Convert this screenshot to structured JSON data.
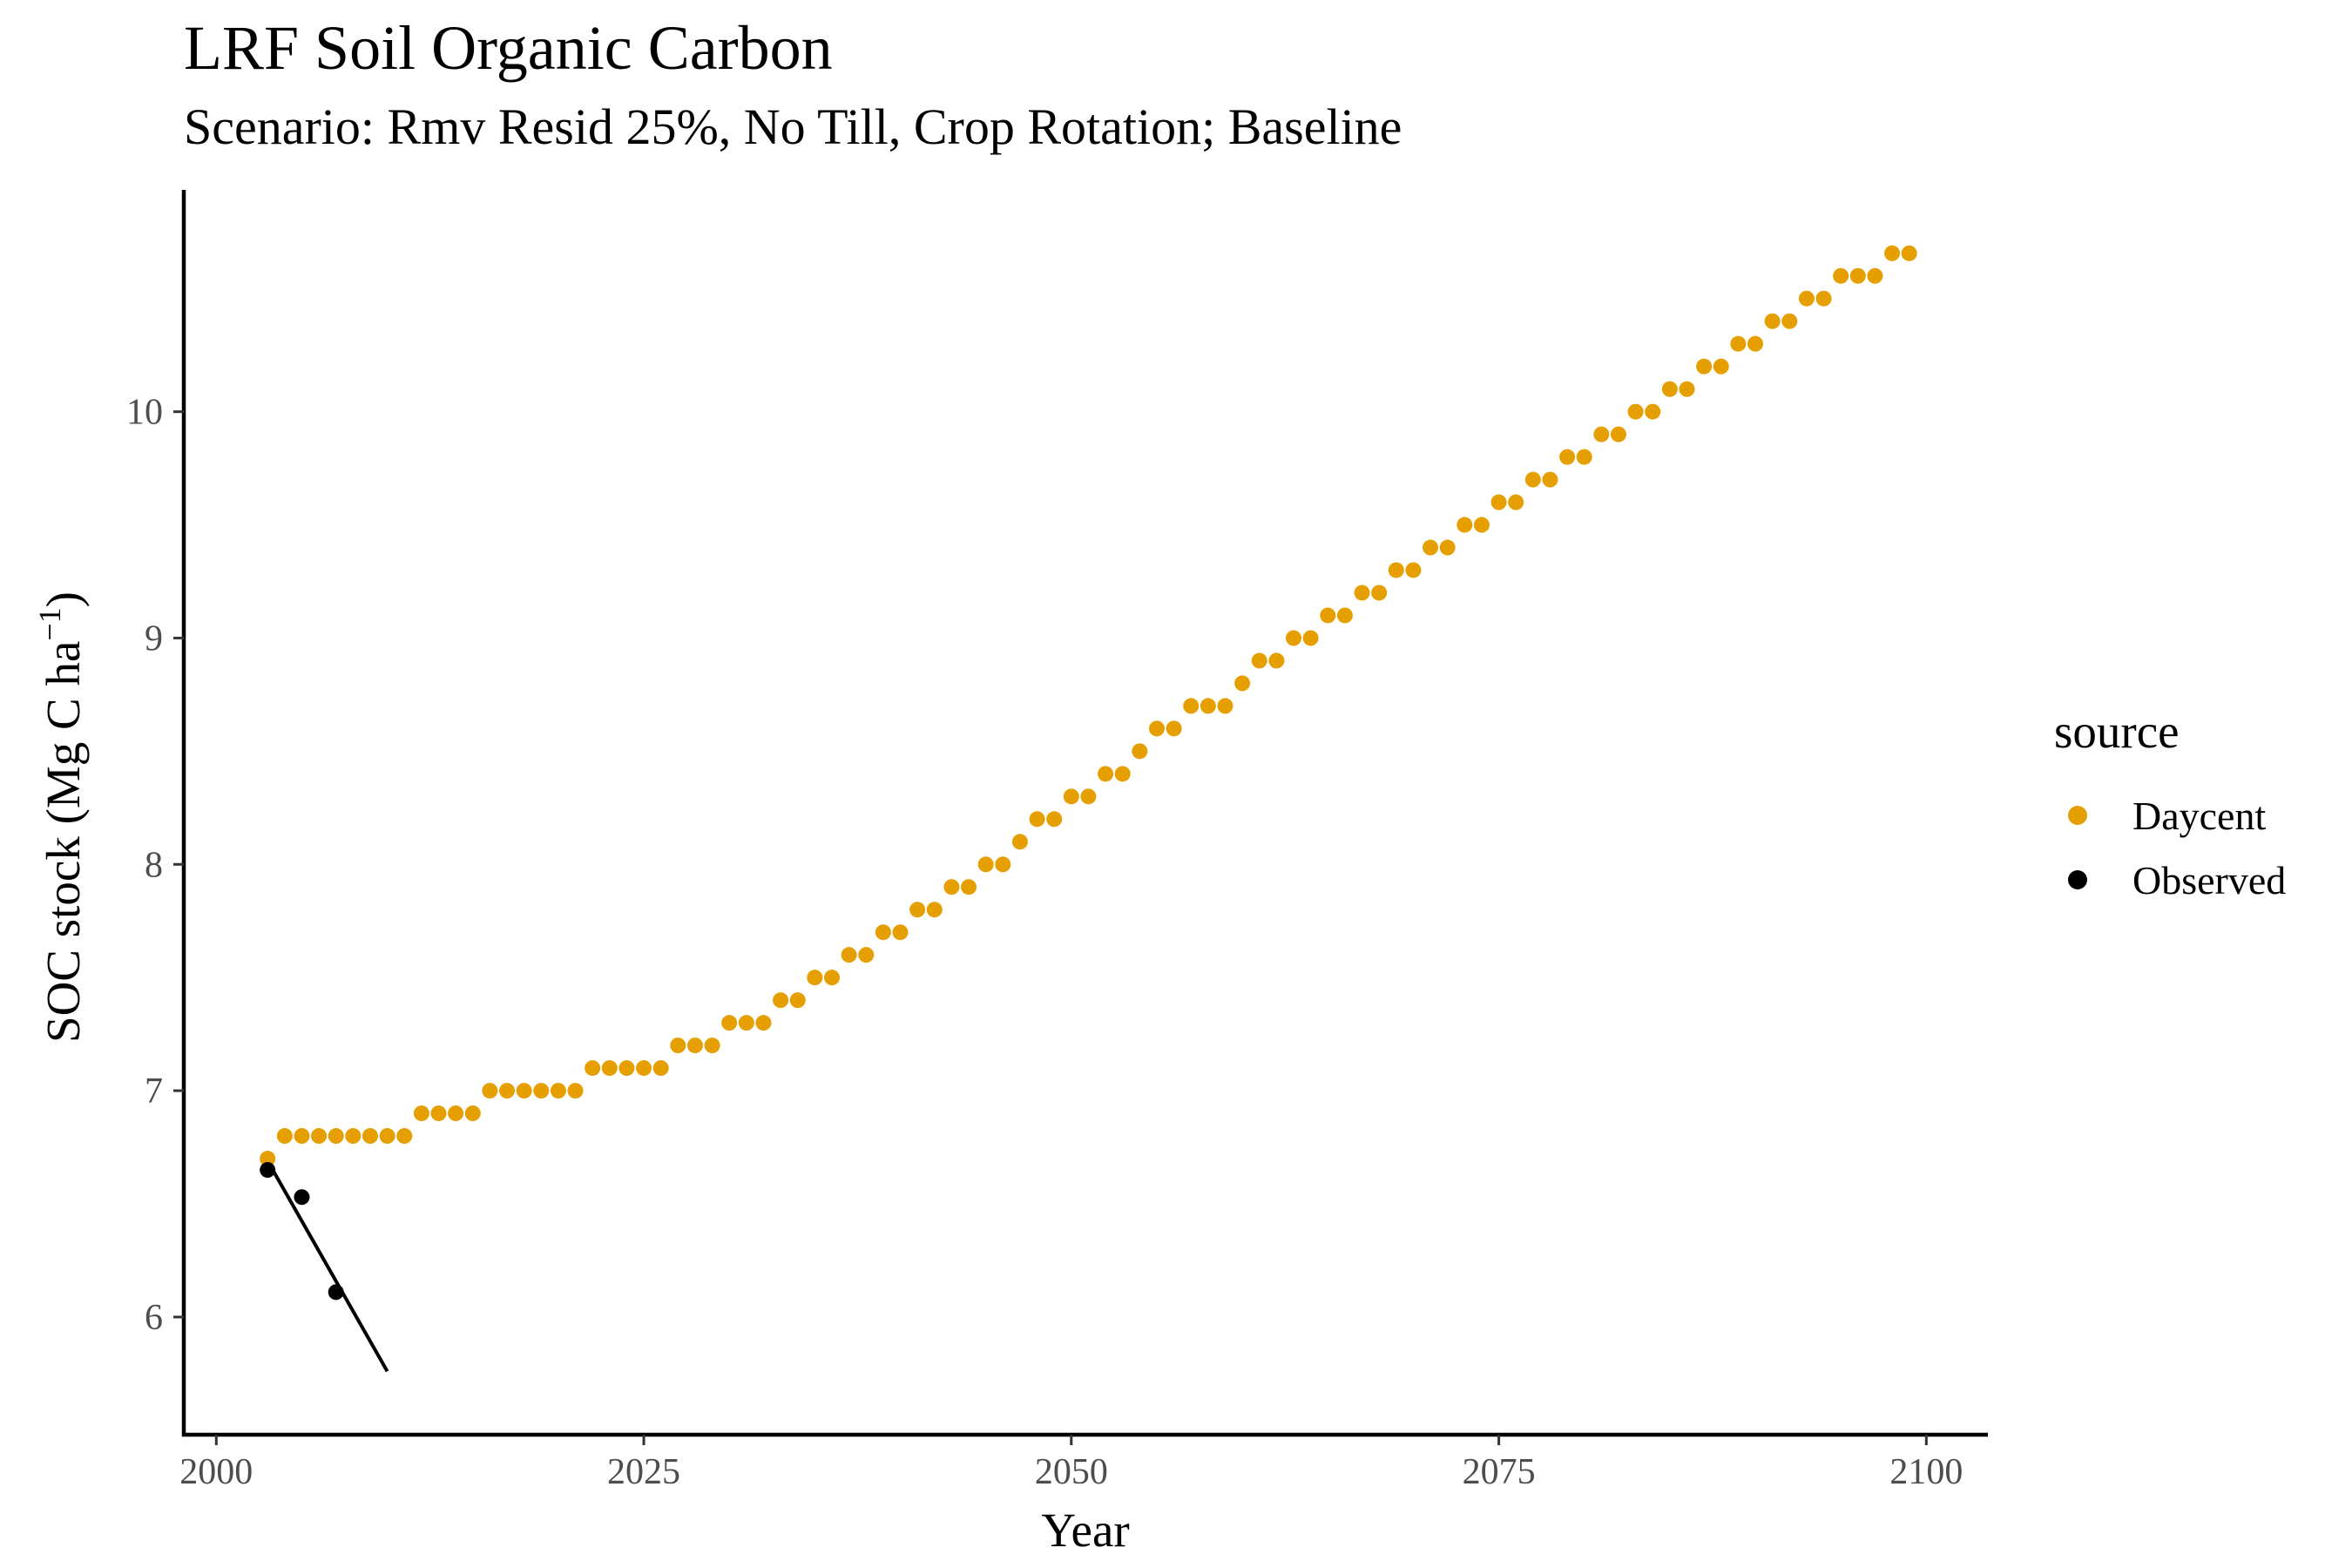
{
  "chart_data": {
    "type": "scatter",
    "title": "LRF Soil Organic Carbon",
    "subtitle": "Scenario: Rmv Resid 25%, No Till, Crop Rotation; Baseline",
    "xlabel": "Year",
    "ylabel_main": "SOC stock (Mg C ha",
    "ylabel_sup": "−1",
    "ylabel_close": ")",
    "xlim": [
      1998.1,
      2103.6
    ],
    "ylim": [
      5.48,
      10.98
    ],
    "x_ticks": [
      2000,
      2025,
      2050,
      2075,
      2100
    ],
    "x_tick_labels": [
      "2000",
      "2025",
      "2050",
      "2075",
      "2100"
    ],
    "y_ticks": [
      6,
      7,
      8,
      9,
      10
    ],
    "y_tick_labels": [
      "6",
      "7",
      "8",
      "9",
      "10"
    ],
    "grid": false,
    "legend_position": "right",
    "legend_title": "source",
    "series": [
      {
        "name": "Daycent",
        "color": "#E69F00",
        "x": [
          2003,
          2004,
          2005,
          2006,
          2007,
          2008,
          2009,
          2010,
          2011,
          2012,
          2013,
          2014,
          2015,
          2016,
          2017,
          2018,
          2019,
          2020,
          2021,
          2022,
          2023,
          2024,
          2025,
          2026,
          2027,
          2028,
          2029,
          2030,
          2031,
          2032,
          2033,
          2034,
          2035,
          2036,
          2037,
          2038,
          2039,
          2040,
          2041,
          2042,
          2043,
          2044,
          2045,
          2046,
          2047,
          2048,
          2049,
          2050,
          2051,
          2052,
          2053,
          2054,
          2055,
          2056,
          2057,
          2058,
          2059,
          2060,
          2061,
          2062,
          2063,
          2064,
          2065,
          2066,
          2067,
          2068,
          2069,
          2070,
          2071,
          2072,
          2073,
          2074,
          2075,
          2076,
          2077,
          2078,
          2079,
          2080,
          2081,
          2082,
          2083,
          2084,
          2085,
          2086,
          2087,
          2088,
          2089,
          2090,
          2091,
          2092,
          2093,
          2094,
          2095,
          2096,
          2097,
          2098,
          2099
        ],
        "y": [
          6.7,
          6.8,
          6.8,
          6.8,
          6.8,
          6.8,
          6.8,
          6.8,
          6.8,
          6.9,
          6.9,
          6.9,
          6.9,
          7.0,
          7.0,
          7.0,
          7.0,
          7.0,
          7.0,
          7.1,
          7.1,
          7.1,
          7.1,
          7.1,
          7.2,
          7.2,
          7.2,
          7.3,
          7.3,
          7.3,
          7.4,
          7.4,
          7.5,
          7.5,
          7.6,
          7.6,
          7.7,
          7.7,
          7.8,
          7.8,
          7.9,
          7.9,
          8.0,
          8.0,
          8.1,
          8.2,
          8.2,
          8.3,
          8.3,
          8.4,
          8.4,
          8.5,
          8.6,
          8.6,
          8.7,
          8.7,
          8.7,
          8.8,
          8.9,
          8.9,
          9.0,
          9.0,
          9.1,
          9.1,
          9.2,
          9.2,
          9.3,
          9.3,
          9.4,
          9.4,
          9.5,
          9.5,
          9.6,
          9.6,
          9.7,
          9.7,
          9.8,
          9.8,
          9.9,
          9.9,
          10.0,
          10.0,
          10.1,
          10.1,
          10.2,
          10.2,
          10.3,
          10.3,
          10.4,
          10.4,
          10.5,
          10.5,
          10.6,
          10.6,
          10.6,
          10.7,
          10.7
        ]
      },
      {
        "name": "Observed",
        "color": "#000000",
        "x": [
          2003,
          2005,
          2007
        ],
        "y": [
          6.65,
          6.53,
          6.11
        ]
      }
    ],
    "trend_line": {
      "color": "#000000",
      "x": [
        2003,
        2010
      ],
      "y": [
        6.69,
        5.76
      ]
    }
  }
}
